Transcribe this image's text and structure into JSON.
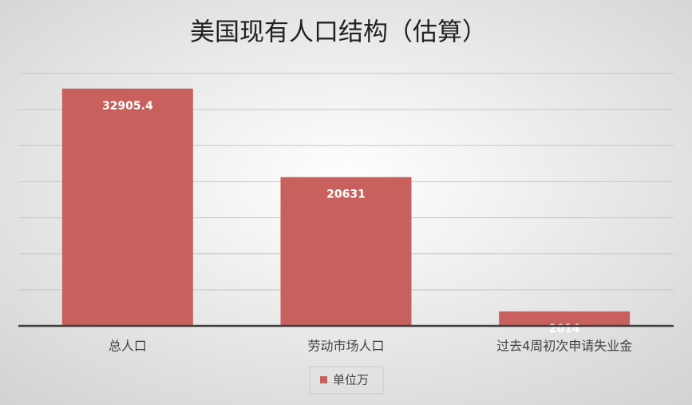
{
  "chart_data": {
    "type": "bar",
    "title": "美国现有人口结构（估算）",
    "categories": [
      "总人口",
      "劳动市场人口",
      "过去4周初次申请失业金"
    ],
    "series": [
      {
        "name": "单位万",
        "color": "#c8605d",
        "values": [
          32905.4,
          20631,
          2014
        ]
      }
    ],
    "ylim": [
      0,
      35000
    ],
    "yticks": [
      0,
      5000,
      10000,
      15000,
      20000,
      25000,
      30000,
      35000
    ],
    "grid": true
  }
}
